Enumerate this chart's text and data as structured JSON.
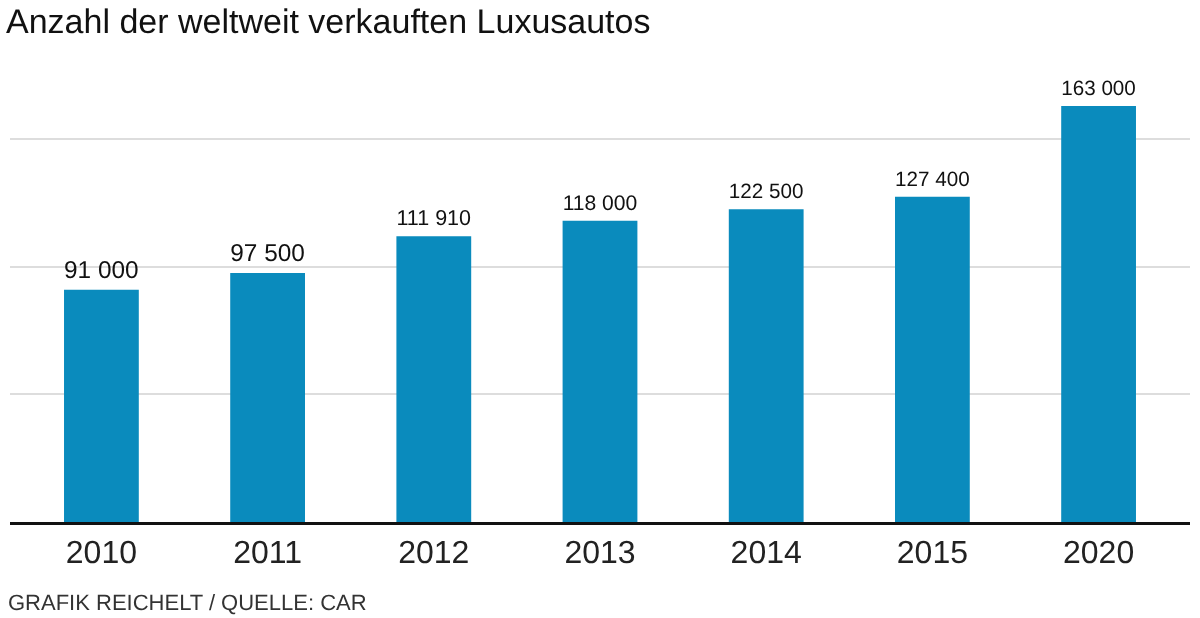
{
  "chart_data": {
    "type": "bar",
    "title": "Anzahl der weltweit verkauften Luxusautos",
    "categories": [
      "2010",
      "2011",
      "2012",
      "2013",
      "2014",
      "2015",
      "2020"
    ],
    "values": [
      91000,
      97500,
      111910,
      118000,
      122500,
      127400,
      163000
    ],
    "value_labels": [
      "91 000",
      "97 500",
      "111 910",
      "118 000",
      "122 500",
      "127 400",
      "163 000"
    ],
    "color": "#0a8bbd",
    "yticks": [
      {
        "value": 0,
        "label": null
      },
      {
        "value": 50000,
        "label": null
      },
      {
        "value": 100000,
        "label": null
      },
      {
        "value": 150000,
        "label": null
      }
    ],
    "grid": "y",
    "tick_labels": "x",
    "annotations": [
      "GRAFIK REICHELT / QUELLE: CAR"
    ]
  }
}
